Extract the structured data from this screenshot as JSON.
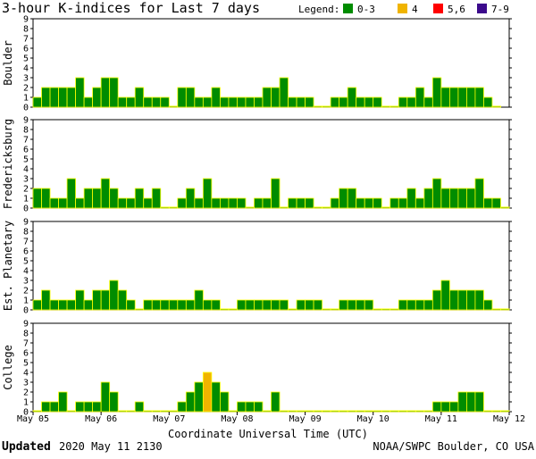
{
  "chart_data": {
    "type": "bar",
    "title": "3-hour K-indices for Last 7 days",
    "legend": {
      "label": "Legend:",
      "items": [
        {
          "label": "0-3",
          "color": "#008c00"
        },
        {
          "label": "4",
          "color": "#f0b400"
        },
        {
          "label": "5,6",
          "color": "#ff0000"
        },
        {
          "label": "7-9",
          "color": "#3c0a8c"
        }
      ]
    },
    "ylim": [
      0,
      9
    ],
    "y_ticks": [
      "0",
      "1",
      "2",
      "3",
      "4",
      "5",
      "6",
      "7",
      "8",
      "9"
    ],
    "x_tick_labels": [
      "May 05",
      "May 06",
      "May 07",
      "May 08",
      "May 09",
      "May 10",
      "May 11",
      "May 12"
    ],
    "xlabel": "Coordinate Universal Time (UTC)",
    "series": [
      {
        "name": "Boulder",
        "values": [
          1,
          2,
          2,
          2,
          2,
          3,
          1,
          2,
          3,
          3,
          1,
          1,
          2,
          1,
          1,
          1,
          0,
          2,
          2,
          1,
          1,
          2,
          1,
          1,
          1,
          1,
          1,
          2,
          2,
          3,
          1,
          1,
          1,
          0,
          0,
          1,
          1,
          2,
          1,
          1,
          1,
          0,
          0,
          1,
          1,
          2,
          1,
          3,
          2,
          2,
          2,
          2,
          2,
          1,
          0
        ]
      },
      {
        "name": "Fredericksburg",
        "values": [
          2,
          2,
          1,
          1,
          3,
          1,
          2,
          2,
          3,
          2,
          1,
          1,
          2,
          1,
          2,
          0,
          0,
          1,
          2,
          1,
          3,
          1,
          1,
          1,
          1,
          0,
          1,
          1,
          3,
          0,
          1,
          1,
          1,
          0,
          0,
          1,
          2,
          2,
          1,
          1,
          1,
          0,
          1,
          1,
          2,
          1,
          2,
          3,
          2,
          2,
          2,
          2,
          3,
          1,
          1,
          0
        ]
      },
      {
        "name": "Est. Planetary",
        "values": [
          1,
          2,
          1,
          1,
          1,
          2,
          1,
          2,
          2,
          3,
          2,
          1,
          0,
          1,
          1,
          1,
          1,
          1,
          1,
          2,
          1,
          1,
          0,
          0,
          1,
          1,
          1,
          1,
          1,
          1,
          0,
          1,
          1,
          1,
          0,
          0,
          1,
          1,
          1,
          1,
          0,
          0,
          0,
          1,
          1,
          1,
          1,
          2,
          3,
          2,
          2,
          2,
          2,
          1,
          0,
          0
        ]
      },
      {
        "name": "College",
        "values": [
          0,
          1,
          1,
          2,
          0,
          1,
          1,
          1,
          3,
          2,
          0,
          0,
          1,
          0,
          0,
          0,
          0,
          1,
          2,
          3,
          4,
          3,
          2,
          0,
          1,
          1,
          1,
          0,
          2,
          0,
          0,
          0,
          0,
          0,
          0,
          0,
          0,
          0,
          0,
          0,
          0,
          0,
          0,
          0,
          0,
          0,
          0,
          1,
          1,
          1,
          2,
          2,
          2,
          0,
          0,
          0
        ]
      }
    ]
  },
  "footer": {
    "updated_label": "Updated",
    "updated_time": "2020 May 11 2130",
    "credit": "NOAA/SWPC Boulder, CO USA"
  }
}
